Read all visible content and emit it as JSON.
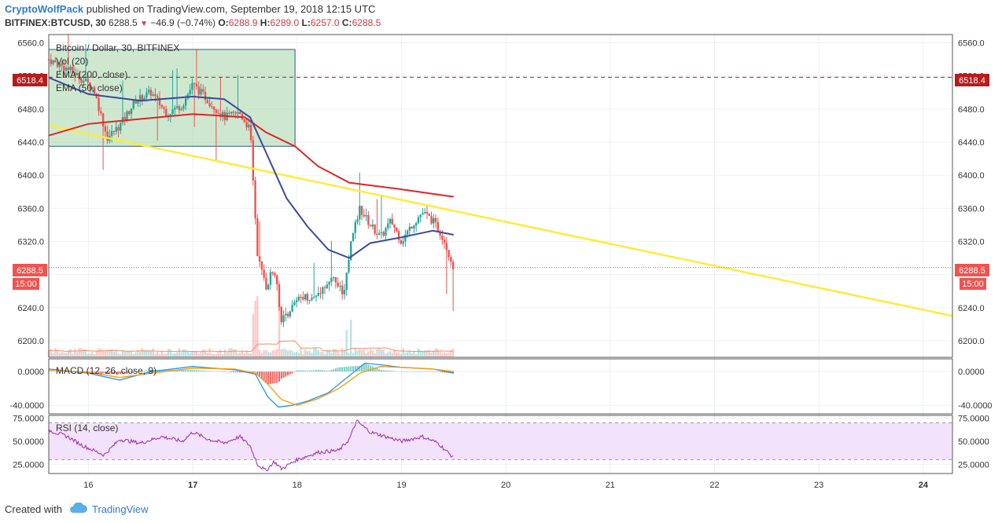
{
  "header": {
    "username": "CryptoWolfPack",
    "published_text": "published on TradingView.com, September 19, 2018 12:15 UTC",
    "symbol_line": "BITFINEX:BTCUSD, 30",
    "last_price": "6288.5",
    "change_text": "−46.9 (−0.74%)",
    "o_label": "O:",
    "o": "6288.9",
    "h_label": "H:",
    "h": "6289.0",
    "l_label": "L:",
    "l": "6257.0",
    "c_label": "C:",
    "c": "6288.5"
  },
  "legend": {
    "title": "Bitcoin / Dollar, 30, BITFINEX",
    "vol": "Vol (20)",
    "ema200": "EMA (200, close)",
    "ema50": "EMA (50, close)",
    "macd": "MACD (12, 26, close, 9)",
    "rsi": "RSI (14, close)"
  },
  "price_tags": {
    "hline": "6518.4",
    "current": "6288.5",
    "countdown": "15:00"
  },
  "colors": {
    "up": "#26a69a",
    "down": "#ef5350",
    "ema200": "#e02424",
    "ema50": "#3b4a9c",
    "trendline": "#ffeb3b",
    "box_fill": "#a5d6a7",
    "rsi_band": "#f3e2fb",
    "rsi_line": "#9c27b0",
    "macd_line": "#2196f3",
    "signal_line": "#ff9800",
    "hline": "#b71c1c"
  },
  "footer": {
    "created_with": "Created with",
    "brand": "TradingView"
  },
  "chart_data": {
    "type": "candlestick",
    "price_axis": {
      "range": [
        6180,
        6570
      ],
      "ticks": [
        "6560.0",
        "6520.0",
        "6480.0",
        "6440.0",
        "6400.0",
        "6360.0",
        "6320.0",
        "6280.0",
        "6240.0",
        "6200.0"
      ],
      "tick_values": [
        6560,
        6520,
        6480,
        6440,
        6400,
        6360,
        6320,
        6280,
        6240,
        6200
      ]
    },
    "macd_axis": {
      "range": [
        -50,
        15
      ],
      "ticks": [
        "0.0000",
        "-40.0000"
      ],
      "tick_values": [
        0,
        -40
      ]
    },
    "rsi_axis": {
      "range": [
        15,
        78
      ],
      "ticks": [
        "75.0000",
        "50.0000",
        "25.0000"
      ],
      "tick_values": [
        75,
        50,
        25
      ],
      "band": [
        30,
        70
      ]
    },
    "x_axis": {
      "ticks": [
        "16",
        "17",
        "18",
        "19",
        "20",
        "21",
        "22",
        "23",
        "24"
      ],
      "tick_days": [
        16,
        17,
        18,
        19,
        20,
        21,
        22,
        23,
        24
      ],
      "bold_ticks": [
        "17",
        "24"
      ],
      "range": [
        15.62,
        24.28
      ]
    },
    "horizontal_line": 6518.4,
    "current_price": 6288.5,
    "highlight_box": {
      "x": [
        15.62,
        17.98
      ],
      "price": [
        6435,
        6552
      ]
    },
    "trendline": {
      "x": [
        15.62,
        24.28
      ],
      "price": [
        6460,
        6230
      ]
    },
    "price_path": [
      [
        15.62,
        6540
      ],
      [
        15.85,
        6525
      ],
      [
        16.05,
        6505
      ],
      [
        16.18,
        6445
      ],
      [
        16.3,
        6460
      ],
      [
        16.45,
        6490
      ],
      [
        16.6,
        6500
      ],
      [
        16.75,
        6475
      ],
      [
        16.9,
        6485
      ],
      [
        17.0,
        6510
      ],
      [
        17.15,
        6490
      ],
      [
        17.3,
        6470
      ],
      [
        17.45,
        6475
      ],
      [
        17.55,
        6455
      ],
      [
        17.62,
        6300
      ],
      [
        17.7,
        6265
      ],
      [
        17.78,
        6290
      ],
      [
        17.85,
        6225
      ],
      [
        17.95,
        6240
      ],
      [
        18.05,
        6255
      ],
      [
        18.15,
        6250
      ],
      [
        18.25,
        6265
      ],
      [
        18.35,
        6275
      ],
      [
        18.45,
        6255
      ],
      [
        18.52,
        6320
      ],
      [
        18.6,
        6360
      ],
      [
        18.7,
        6340
      ],
      [
        18.8,
        6325
      ],
      [
        18.9,
        6345
      ],
      [
        19.0,
        6320
      ],
      [
        19.1,
        6340
      ],
      [
        19.2,
        6355
      ],
      [
        19.3,
        6345
      ],
      [
        19.4,
        6325
      ],
      [
        19.5,
        6288.5
      ]
    ],
    "ema200": [
      [
        15.62,
        6448
      ],
      [
        16.0,
        6462
      ],
      [
        16.5,
        6468
      ],
      [
        17.0,
        6474
      ],
      [
        17.5,
        6470
      ],
      [
        17.7,
        6452
      ],
      [
        17.98,
        6435
      ],
      [
        18.2,
        6411
      ],
      [
        18.5,
        6391
      ],
      [
        19.0,
        6383
      ],
      [
        19.5,
        6374
      ]
    ],
    "ema50": [
      [
        15.62,
        6518
      ],
      [
        16.0,
        6498
      ],
      [
        16.5,
        6490
      ],
      [
        17.0,
        6495
      ],
      [
        17.3,
        6492
      ],
      [
        17.55,
        6470
      ],
      [
        17.7,
        6428
      ],
      [
        17.9,
        6372
      ],
      [
        18.1,
        6338
      ],
      [
        18.3,
        6310
      ],
      [
        18.5,
        6300
      ],
      [
        18.7,
        6318
      ],
      [
        19.0,
        6325
      ],
      [
        19.3,
        6333
      ],
      [
        19.5,
        6328
      ]
    ],
    "macd_line": [
      [
        15.62,
        3
      ],
      [
        16.0,
        -2
      ],
      [
        16.3,
        -10
      ],
      [
        16.6,
        0
      ],
      [
        17.0,
        6
      ],
      [
        17.4,
        2
      ],
      [
        17.6,
        -3
      ],
      [
        17.72,
        -30
      ],
      [
        17.82,
        -42
      ],
      [
        17.95,
        -40
      ],
      [
        18.1,
        -35
      ],
      [
        18.3,
        -25
      ],
      [
        18.5,
        -5
      ],
      [
        18.65,
        10
      ],
      [
        18.8,
        8
      ],
      [
        19.0,
        5
      ],
      [
        19.3,
        3
      ],
      [
        19.5,
        -2
      ]
    ],
    "signal_line": [
      [
        15.62,
        2
      ],
      [
        16.0,
        -1
      ],
      [
        16.3,
        -7
      ],
      [
        16.6,
        -2
      ],
      [
        17.0,
        4
      ],
      [
        17.4,
        3
      ],
      [
        17.6,
        -2
      ],
      [
        17.72,
        -15
      ],
      [
        17.85,
        -33
      ],
      [
        18.0,
        -40
      ],
      [
        18.2,
        -32
      ],
      [
        18.4,
        -20
      ],
      [
        18.6,
        -2
      ],
      [
        18.8,
        6
      ],
      [
        19.0,
        5
      ],
      [
        19.3,
        3
      ],
      [
        19.5,
        0
      ]
    ],
    "rsi": [
      [
        15.62,
        62
      ],
      [
        15.8,
        55
      ],
      [
        15.95,
        45
      ],
      [
        16.15,
        35
      ],
      [
        16.3,
        52
      ],
      [
        16.5,
        48
      ],
      [
        16.7,
        55
      ],
      [
        16.9,
        50
      ],
      [
        17.0,
        60
      ],
      [
        17.15,
        52
      ],
      [
        17.3,
        48
      ],
      [
        17.45,
        55
      ],
      [
        17.55,
        45
      ],
      [
        17.62,
        25
      ],
      [
        17.7,
        18
      ],
      [
        17.78,
        28
      ],
      [
        17.85,
        20
      ],
      [
        18.0,
        30
      ],
      [
        18.2,
        38
      ],
      [
        18.4,
        40
      ],
      [
        18.5,
        52
      ],
      [
        18.57,
        72
      ],
      [
        18.7,
        60
      ],
      [
        18.85,
        55
      ],
      [
        19.0,
        50
      ],
      [
        19.2,
        55
      ],
      [
        19.35,
        48
      ],
      [
        19.5,
        32
      ]
    ]
  }
}
